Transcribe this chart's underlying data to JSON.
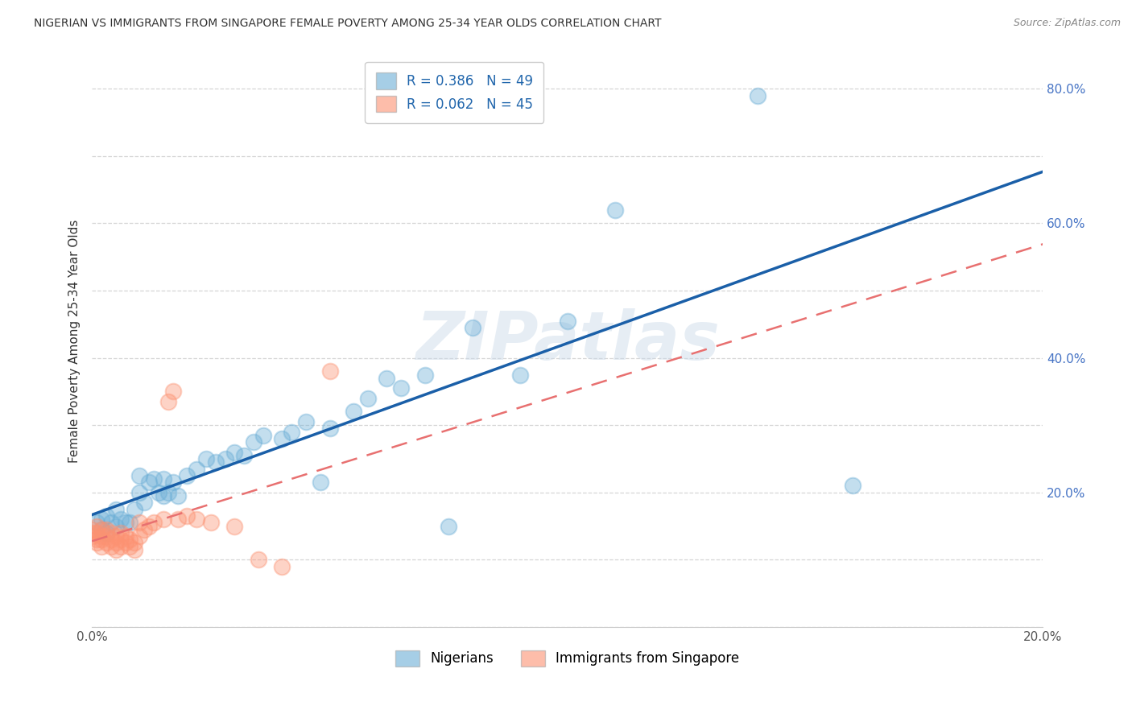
{
  "title": "NIGERIAN VS IMMIGRANTS FROM SINGAPORE FEMALE POVERTY AMONG 25-34 YEAR OLDS CORRELATION CHART",
  "source": "Source: ZipAtlas.com",
  "ylabel": "Female Poverty Among 25-34 Year Olds",
  "watermark": "ZIPatlas",
  "xlim": [
    0.0,
    0.2
  ],
  "ylim": [
    0.0,
    0.85
  ],
  "x_ticks": [
    0.0,
    0.02,
    0.04,
    0.06,
    0.08,
    0.1,
    0.12,
    0.14,
    0.16,
    0.18,
    0.2
  ],
  "y_ticks": [
    0.0,
    0.1,
    0.2,
    0.3,
    0.4,
    0.5,
    0.6,
    0.7,
    0.8
  ],
  "nigerians_color": "#6baed6",
  "singapore_color": "#fc9272",
  "nigerians_line_color": "#1a5fa8",
  "singapore_line_color": "#e87070",
  "nigeria_R": 0.386,
  "nigeria_N": 49,
  "singapore_R": 0.062,
  "singapore_N": 45,
  "nigerians_x": [
    0.001,
    0.002,
    0.002,
    0.003,
    0.003,
    0.004,
    0.005,
    0.005,
    0.006,
    0.007,
    0.008,
    0.009,
    0.01,
    0.01,
    0.011,
    0.012,
    0.013,
    0.014,
    0.015,
    0.015,
    0.016,
    0.017,
    0.018,
    0.02,
    0.022,
    0.024,
    0.026,
    0.028,
    0.03,
    0.032,
    0.034,
    0.036,
    0.04,
    0.042,
    0.045,
    0.048,
    0.05,
    0.055,
    0.058,
    0.062,
    0.065,
    0.07,
    0.075,
    0.08,
    0.09,
    0.1,
    0.11,
    0.14,
    0.16
  ],
  "nigerians_y": [
    0.155,
    0.145,
    0.16,
    0.14,
    0.165,
    0.155,
    0.15,
    0.175,
    0.16,
    0.155,
    0.155,
    0.175,
    0.2,
    0.225,
    0.185,
    0.215,
    0.22,
    0.2,
    0.22,
    0.195,
    0.2,
    0.215,
    0.195,
    0.225,
    0.235,
    0.25,
    0.245,
    0.25,
    0.26,
    0.255,
    0.275,
    0.285,
    0.28,
    0.29,
    0.305,
    0.215,
    0.295,
    0.32,
    0.34,
    0.37,
    0.355,
    0.375,
    0.15,
    0.445,
    0.375,
    0.455,
    0.62,
    0.79,
    0.21
  ],
  "singapore_x": [
    0.0,
    0.0,
    0.0,
    0.001,
    0.001,
    0.001,
    0.001,
    0.002,
    0.002,
    0.002,
    0.002,
    0.003,
    0.003,
    0.003,
    0.004,
    0.004,
    0.004,
    0.005,
    0.005,
    0.005,
    0.006,
    0.006,
    0.006,
    0.007,
    0.007,
    0.008,
    0.008,
    0.009,
    0.009,
    0.01,
    0.01,
    0.011,
    0.012,
    0.013,
    0.015,
    0.016,
    0.017,
    0.018,
    0.02,
    0.022,
    0.025,
    0.03,
    0.035,
    0.04,
    0.05
  ],
  "singapore_y": [
    0.135,
    0.14,
    0.145,
    0.125,
    0.13,
    0.14,
    0.15,
    0.12,
    0.13,
    0.135,
    0.145,
    0.125,
    0.135,
    0.145,
    0.12,
    0.13,
    0.14,
    0.115,
    0.125,
    0.135,
    0.12,
    0.13,
    0.14,
    0.125,
    0.135,
    0.12,
    0.13,
    0.115,
    0.125,
    0.135,
    0.155,
    0.145,
    0.15,
    0.155,
    0.16,
    0.335,
    0.35,
    0.16,
    0.165,
    0.16,
    0.155,
    0.15,
    0.1,
    0.09,
    0.38
  ]
}
